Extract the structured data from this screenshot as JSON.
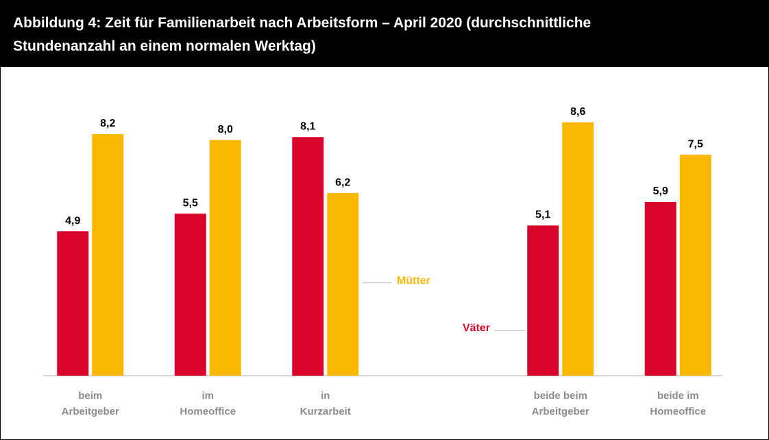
{
  "chart_data": {
    "type": "bar",
    "title": [
      "Abbildung 4: Zeit für Familienarbeit nach Arbeitsform – April 2020 (durchschnittliche",
      "Stundenanzahl an einem normalen Werktag)"
    ],
    "categories": [
      [
        "beim",
        "Arbeitgeber"
      ],
      [
        "im",
        "Homeoffice"
      ],
      [
        "in",
        "Kurzarbeit"
      ],
      null,
      [
        "beide beim",
        "Arbeitgeber"
      ],
      [
        "beide im",
        "Homeoffice"
      ]
    ],
    "series": [
      {
        "name": "Väter",
        "color": "#d9042b",
        "values": [
          4.9,
          5.5,
          8.1,
          null,
          5.1,
          5.9
        ],
        "value_labels": [
          "4,9",
          "5,5",
          "8,1",
          null,
          "5,1",
          "5,9"
        ]
      },
      {
        "name": "Mütter",
        "color": "#fbb800",
        "values": [
          8.2,
          8.0,
          6.2,
          null,
          8.6,
          7.5
        ],
        "value_labels": [
          "8,2",
          "8,0",
          "6,2",
          null,
          "8,6",
          "7,5"
        ]
      }
    ],
    "ylim": [
      0,
      10
    ]
  }
}
